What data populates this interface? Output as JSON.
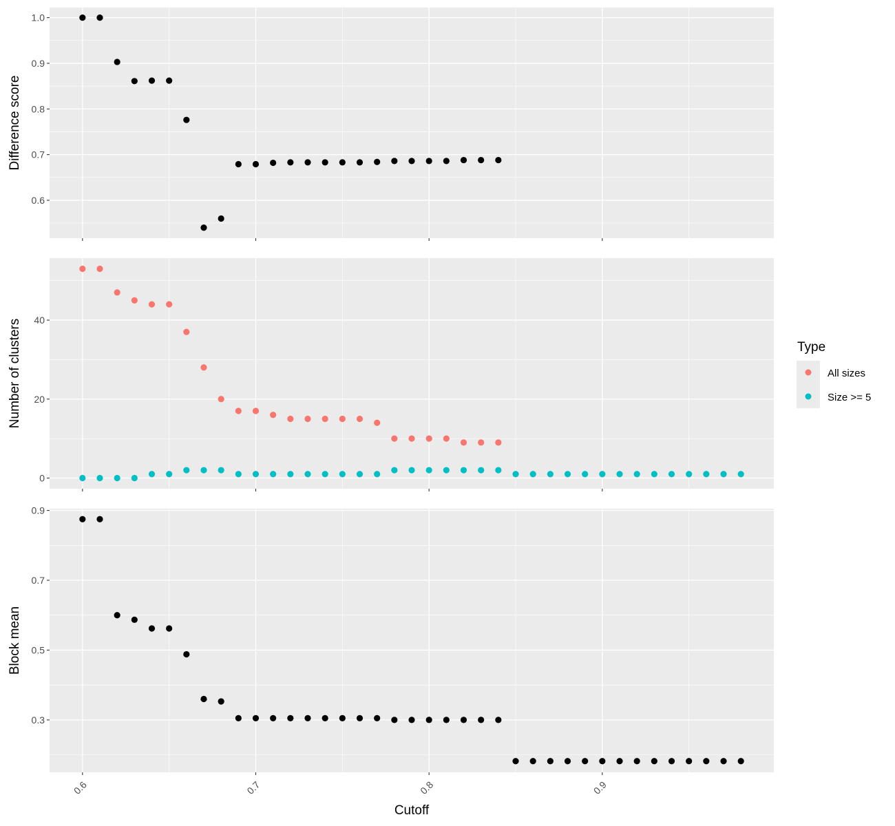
{
  "chart_data": {
    "type": "scatter",
    "xlabel": "Cutoff",
    "x_ticks": [
      0.6,
      0.7,
      0.8,
      0.9
    ],
    "x_tick_labels": [
      "0.6",
      "0.7",
      "0.8",
      "0.9"
    ],
    "xlim": [
      0.581,
      0.999
    ],
    "grid": true,
    "legend": {
      "title": "Type",
      "position": "right",
      "entries": [
        {
          "label": "All sizes",
          "color": "#F8766D"
        },
        {
          "label": "Size >= 5",
          "color": "#00BFC4"
        }
      ]
    },
    "panels": [
      {
        "ylabel": "Difference score",
        "ylim": [
          0.517,
          1.022
        ],
        "y_ticks": [
          0.6,
          0.7,
          0.8,
          0.9,
          1.0
        ],
        "y_tick_labels": [
          "0.6",
          "0.7",
          "0.8",
          "0.9",
          "1.0"
        ],
        "series": [
          {
            "color": "#000000",
            "x": [
              0.6,
              0.61,
              0.62,
              0.63,
              0.64,
              0.65,
              0.66,
              0.67,
              0.68,
              0.69,
              0.7,
              0.71,
              0.72,
              0.73,
              0.74,
              0.75,
              0.76,
              0.77,
              0.78,
              0.79,
              0.8,
              0.81,
              0.82,
              0.83,
              0.84
            ],
            "y": [
              1.0,
              1.0,
              0.903,
              0.861,
              0.862,
              0.862,
              0.776,
              0.54,
              0.56,
              0.679,
              0.679,
              0.682,
              0.683,
              0.683,
              0.683,
              0.683,
              0.683,
              0.684,
              0.686,
              0.686,
              0.686,
              0.686,
              0.688,
              0.688,
              0.688
            ]
          }
        ]
      },
      {
        "ylabel": "Number of clusters",
        "ylim": [
          -2.7,
          55.7
        ],
        "y_ticks": [
          0,
          20,
          40
        ],
        "y_tick_labels": [
          "0",
          "20",
          "40"
        ],
        "series": [
          {
            "name": "All sizes",
            "color": "#F8766D",
            "x": [
              0.6,
              0.61,
              0.62,
              0.63,
              0.64,
              0.65,
              0.66,
              0.67,
              0.68,
              0.69,
              0.7,
              0.71,
              0.72,
              0.73,
              0.74,
              0.75,
              0.76,
              0.77,
              0.78,
              0.79,
              0.8,
              0.81,
              0.82,
              0.83,
              0.84
            ],
            "y": [
              53,
              53,
              47,
              45,
              44,
              44,
              37,
              28,
              20,
              17,
              17,
              16,
              15,
              15,
              15,
              15,
              15,
              14,
              10,
              10,
              10,
              10,
              9,
              9,
              9
            ]
          },
          {
            "name": "Size >= 5",
            "color": "#00BFC4",
            "x": [
              0.6,
              0.61,
              0.62,
              0.63,
              0.64,
              0.65,
              0.66,
              0.67,
              0.68,
              0.69,
              0.7,
              0.71,
              0.72,
              0.73,
              0.74,
              0.75,
              0.76,
              0.77,
              0.78,
              0.79,
              0.8,
              0.81,
              0.82,
              0.83,
              0.84,
              0.85,
              0.86,
              0.87,
              0.88,
              0.89,
              0.9,
              0.91,
              0.92,
              0.93,
              0.94,
              0.95,
              0.96,
              0.97,
              0.98
            ],
            "y": [
              0,
              0,
              0,
              0,
              1,
              1,
              2,
              2,
              2,
              1,
              1,
              1,
              1,
              1,
              1,
              1,
              1,
              1,
              2,
              2,
              2,
              2,
              2,
              2,
              2,
              1,
              1,
              1,
              1,
              1,
              1,
              1,
              1,
              1,
              1,
              1,
              1,
              1,
              1
            ]
          }
        ]
      },
      {
        "ylabel": "Block mean",
        "ylim": [
          0.15,
          0.905
        ],
        "y_ticks": [
          0.3,
          0.5,
          0.7,
          0.9
        ],
        "y_tick_labels": [
          "0.3",
          "0.5",
          "0.7",
          "0.9"
        ],
        "series": [
          {
            "color": "#000000",
            "x": [
              0.6,
              0.61,
              0.62,
              0.63,
              0.64,
              0.65,
              0.66,
              0.67,
              0.68,
              0.69,
              0.7,
              0.71,
              0.72,
              0.73,
              0.74,
              0.75,
              0.76,
              0.77,
              0.78,
              0.79,
              0.8,
              0.81,
              0.82,
              0.83,
              0.84,
              0.85,
              0.86,
              0.87,
              0.88,
              0.89,
              0.9,
              0.91,
              0.92,
              0.93,
              0.94,
              0.95,
              0.96,
              0.97,
              0.98
            ],
            "y": [
              0.875,
              0.875,
              0.6,
              0.587,
              0.562,
              0.562,
              0.488,
              0.36,
              0.353,
              0.305,
              0.305,
              0.305,
              0.305,
              0.305,
              0.305,
              0.305,
              0.305,
              0.305,
              0.3,
              0.3,
              0.3,
              0.3,
              0.3,
              0.3,
              0.3,
              0.182,
              0.182,
              0.182,
              0.182,
              0.182,
              0.182,
              0.182,
              0.182,
              0.182,
              0.182,
              0.182,
              0.182,
              0.182,
              0.182
            ]
          }
        ]
      }
    ]
  }
}
